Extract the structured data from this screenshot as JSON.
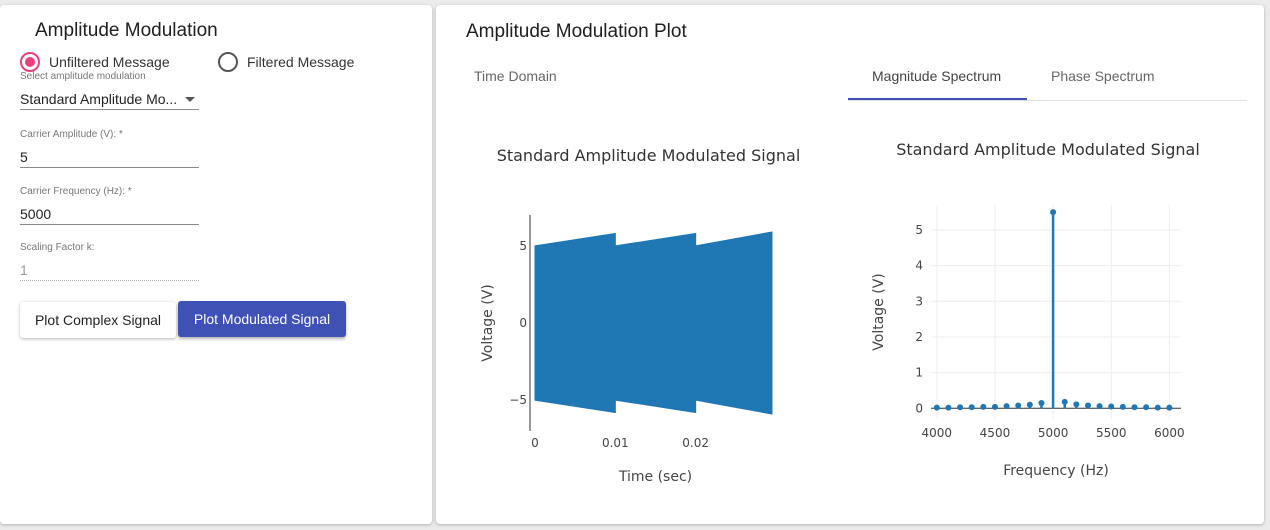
{
  "left": {
    "title": "Amplitude Modulation",
    "radio_unfiltered": "Unfiltered Message",
    "radio_filtered": "Filtered Message",
    "select_label": "Select amplitude modulation",
    "select_value": "Standard Amplitude Mo...",
    "carrier_amplitude_label": "Carrier Amplitude (V): *",
    "carrier_amplitude_value": "5",
    "carrier_frequency_label": "Carrier Frequency (Hz): *",
    "carrier_frequency_value": "5000",
    "scaling_label": "Scaling Factor k:",
    "scaling_value": "1",
    "btn_complex": "Plot Complex Signal",
    "btn_modulated": "Plot Modulated Signal"
  },
  "right": {
    "title": "Amplitude Modulation Plot",
    "tabs": [
      "Time Domain",
      "Magnitude Spectrum",
      "Phase Spectrum"
    ],
    "active_tab": "Magnitude Spectrum"
  },
  "colors": {
    "accent": "#3f51b5",
    "radio": "#e8407a",
    "plot": "#1f77b4"
  },
  "chart_data": [
    {
      "type": "area",
      "title": "Standard Amplitude Modulated Signal",
      "xlabel": "Time (sec)",
      "ylabel": "Voltage (V)",
      "xlim": [
        0,
        0.03
      ],
      "ylim": [
        -7,
        7
      ],
      "x_ticks": [
        "0",
        "0.01",
        "0.02"
      ],
      "x_tick_values": [
        0,
        0.01,
        0.02
      ],
      "y_ticks": [
        "5",
        "0",
        "−5"
      ],
      "y_tick_values": [
        5,
        0,
        -5
      ],
      "envelope": {
        "x": [
          0,
          0.01,
          0.01,
          0.02,
          0.02,
          0.0295
        ],
        "upper": [
          5.0,
          5.8,
          5.0,
          5.8,
          5.0,
          5.9
        ],
        "lower": [
          -5.0,
          -5.8,
          -5.0,
          -5.8,
          -5.0,
          -5.9
        ]
      }
    },
    {
      "type": "scatter",
      "title": "Standard Amplitude Modulated Signal",
      "xlabel": "Frequency (Hz)",
      "ylabel": "Voltage (V)",
      "xlim": [
        3950,
        6100
      ],
      "ylim": [
        -0.3,
        5.7
      ],
      "x_ticks": [
        "4000",
        "4500",
        "5000",
        "5500",
        "6000"
      ],
      "x_tick_values": [
        4000,
        4500,
        5000,
        5500,
        6000
      ],
      "y_ticks": [
        "0",
        "1",
        "2",
        "3",
        "4",
        "5"
      ],
      "y_tick_values": [
        0,
        1,
        2,
        3,
        4,
        5
      ],
      "x": [
        4000,
        4100,
        4200,
        4300,
        4400,
        4500,
        4600,
        4700,
        4800,
        4900,
        5000,
        5100,
        5200,
        5300,
        5400,
        5500,
        5600,
        5700,
        5800,
        5900,
        6000
      ],
      "values": [
        0.02,
        0.02,
        0.03,
        0.03,
        0.04,
        0.04,
        0.06,
        0.08,
        0.1,
        0.15,
        5.5,
        0.18,
        0.11,
        0.08,
        0.06,
        0.05,
        0.04,
        0.03,
        0.03,
        0.02,
        0.02
      ]
    }
  ]
}
